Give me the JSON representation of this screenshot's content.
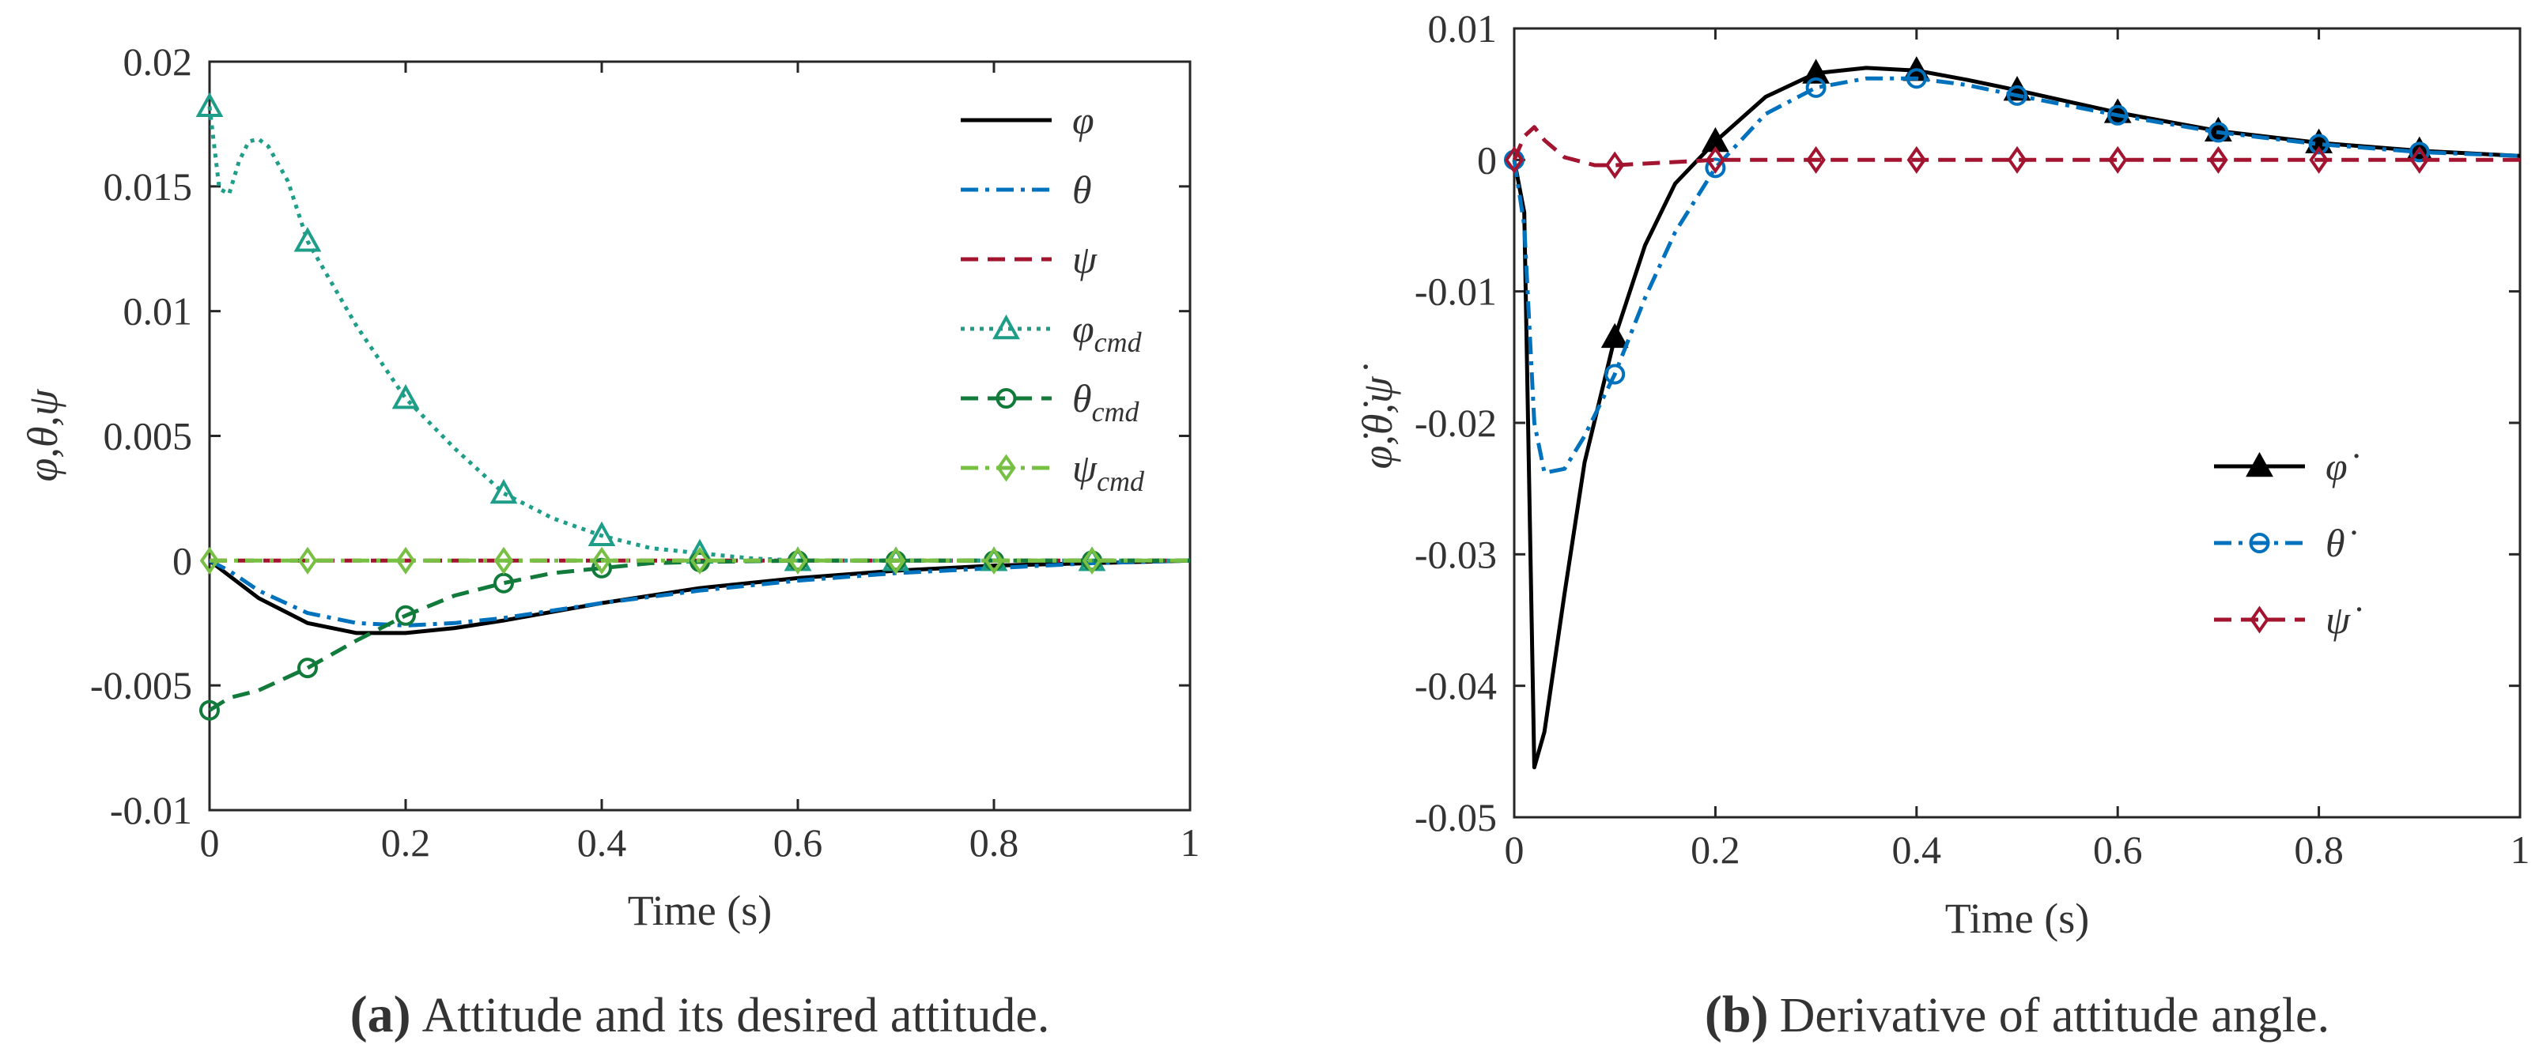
{
  "chart_data": [
    {
      "id": "a",
      "type": "line",
      "caption_letter": "(a)",
      "caption": "Attitude and its desired attitude.",
      "xlabel": "Time (s)",
      "ylabel": "φ,θ,ψ",
      "xlim": [
        0,
        1
      ],
      "ylim": [
        -0.01,
        0.02
      ],
      "xticks": [
        0,
        0.2,
        0.4,
        0.6,
        0.8,
        1
      ],
      "xtick_labels": [
        "0",
        "0.2",
        "0.4",
        "0.6",
        "0.8",
        "1"
      ],
      "yticks": [
        -0.01,
        -0.005,
        0,
        0.005,
        0.01,
        0.015,
        0.02
      ],
      "ytick_labels": [
        "-0.01",
        "-0.005",
        "0",
        "0.005",
        "0.01",
        "0.015",
        "0.02"
      ],
      "grid": false,
      "legend_position": "top-right",
      "series": [
        {
          "name": "φ",
          "sub": "",
          "color": "#000000",
          "dash": "solid",
          "marker": "none",
          "x": [
            0,
            0.02,
            0.05,
            0.1,
            0.15,
            0.2,
            0.25,
            0.3,
            0.4,
            0.5,
            0.6,
            0.7,
            0.8,
            0.9,
            1.0
          ],
          "y": [
            0,
            -0.0006,
            -0.0015,
            -0.0025,
            -0.0029,
            -0.0029,
            -0.0027,
            -0.0024,
            -0.0017,
            -0.0011,
            -0.0007,
            -0.0004,
            -0.0002,
            -0.0001,
            0
          ]
        },
        {
          "name": "θ",
          "sub": "",
          "color": "#0072BD",
          "dash": "dashdot",
          "marker": "none",
          "x": [
            0,
            0.02,
            0.05,
            0.1,
            0.15,
            0.2,
            0.25,
            0.3,
            0.4,
            0.5,
            0.6,
            0.7,
            0.8,
            0.9,
            1.0
          ],
          "y": [
            0,
            -0.0004,
            -0.0012,
            -0.0021,
            -0.0025,
            -0.0026,
            -0.0025,
            -0.0023,
            -0.0017,
            -0.0012,
            -0.0008,
            -0.0005,
            -0.0003,
            -0.0001,
            0
          ]
        },
        {
          "name": "ψ",
          "sub": "",
          "color": "#A2142F",
          "dash": "dashed",
          "marker": "none",
          "x": [
            0,
            0.2,
            0.4,
            0.6,
            0.8,
            1.0
          ],
          "y": [
            0,
            0,
            0,
            0,
            0,
            0
          ]
        },
        {
          "name": "φ",
          "sub": "cmd",
          "color": "#1E9E88",
          "dash": "dotted",
          "marker": "triangle",
          "x": [
            0,
            0.01,
            0.02,
            0.03,
            0.04,
            0.05,
            0.06,
            0.08,
            0.1,
            0.15,
            0.2,
            0.25,
            0.3,
            0.35,
            0.4,
            0.45,
            0.5,
            0.55,
            0.6,
            0.7,
            0.8,
            0.9,
            1.0
          ],
          "y": [
            0.0182,
            0.0149,
            0.0147,
            0.016,
            0.0168,
            0.0169,
            0.0166,
            0.0152,
            0.0128,
            0.0094,
            0.0065,
            0.0045,
            0.0027,
            0.0017,
            0.001,
            0.0005,
            0.0003,
            0.0001,
            0,
            0,
            0,
            0,
            0
          ],
          "marker_x": [
            0,
            0.1,
            0.2,
            0.3,
            0.4,
            0.5,
            0.6,
            0.7,
            0.8,
            0.9
          ],
          "marker_y": [
            0.0182,
            0.0128,
            0.0065,
            0.0027,
            0.001,
            0.0003,
            0,
            0,
            0,
            0
          ]
        },
        {
          "name": "θ",
          "sub": "cmd",
          "color": "#127A3A",
          "dash": "dashed",
          "marker": "circle",
          "x": [
            0,
            0.02,
            0.05,
            0.1,
            0.15,
            0.2,
            0.25,
            0.3,
            0.35,
            0.4,
            0.45,
            0.5,
            0.6,
            0.7,
            0.8,
            0.9,
            1.0
          ],
          "y": [
            -0.006,
            -0.0055,
            -0.0052,
            -0.0043,
            -0.0032,
            -0.0022,
            -0.0014,
            -0.0009,
            -0.0005,
            -0.0003,
            -0.0001,
            -5e-05,
            0,
            0,
            0,
            0,
            0
          ],
          "marker_x": [
            0,
            0.1,
            0.2,
            0.3,
            0.4,
            0.5,
            0.6,
            0.7,
            0.8,
            0.9
          ],
          "marker_y": [
            -0.006,
            -0.0043,
            -0.0022,
            -0.0009,
            -0.0003,
            -5e-05,
            0,
            0,
            0,
            0
          ]
        },
        {
          "name": "ψ",
          "sub": "cmd",
          "color": "#77C043",
          "dash": "dashdot",
          "marker": "diamond",
          "x": [
            0,
            0.2,
            0.4,
            0.6,
            0.8,
            1.0
          ],
          "y": [
            0,
            0,
            0,
            0,
            0,
            0
          ],
          "marker_x": [
            0,
            0.1,
            0.2,
            0.3,
            0.4,
            0.5,
            0.6,
            0.7,
            0.8,
            0.9
          ],
          "marker_y": [
            0,
            0,
            0,
            0,
            0,
            0,
            0,
            0,
            0,
            0
          ]
        }
      ]
    },
    {
      "id": "b",
      "type": "line",
      "caption_letter": "(b)",
      "caption": "Derivative of attitude angle.",
      "xlabel": "Time (s)",
      "ylabel": "φ̇,θ̇,ψ̇",
      "xlim": [
        0,
        1
      ],
      "ylim": [
        -0.05,
        0.01
      ],
      "xticks": [
        0,
        0.2,
        0.4,
        0.6,
        0.8,
        1
      ],
      "xtick_labels": [
        "0",
        "0.2",
        "0.4",
        "0.6",
        "0.8",
        "1"
      ],
      "yticks": [
        -0.05,
        -0.04,
        -0.03,
        -0.02,
        -0.01,
        0,
        0.01
      ],
      "ytick_labels": [
        "-0.05",
        "-0.04",
        "-0.03",
        "-0.02",
        "-0.01",
        "0",
        "0.01"
      ],
      "grid": false,
      "legend_position": "right",
      "series": [
        {
          "name": "φ̇",
          "sub": "",
          "color": "#000000",
          "dash": "solid",
          "marker": "triangle",
          "x": [
            0,
            0.01,
            0.02,
            0.03,
            0.05,
            0.07,
            0.1,
            0.13,
            0.16,
            0.2,
            0.25,
            0.3,
            0.35,
            0.4,
            0.45,
            0.5,
            0.6,
            0.7,
            0.8,
            0.9,
            1.0
          ],
          "y": [
            0,
            -0.004,
            -0.0462,
            -0.0435,
            -0.033,
            -0.023,
            -0.0135,
            -0.0065,
            -0.0018,
            0.0014,
            0.0048,
            0.0066,
            0.007,
            0.0068,
            0.0061,
            0.0053,
            0.0036,
            0.0022,
            0.0013,
            0.0007,
            0.0003
          ],
          "marker_x": [
            0.1,
            0.2,
            0.3,
            0.4,
            0.5,
            0.6,
            0.7,
            0.8,
            0.9
          ],
          "marker_y": [
            -0.0135,
            0.0014,
            0.0066,
            0.0068,
            0.0053,
            0.0036,
            0.0022,
            0.0013,
            0.0007
          ]
        },
        {
          "name": "θ̇",
          "sub": "",
          "color": "#0072BD",
          "dash": "dashdot",
          "marker": "circle",
          "x": [
            0,
            0.01,
            0.02,
            0.03,
            0.05,
            0.07,
            0.1,
            0.13,
            0.16,
            0.2,
            0.25,
            0.3,
            0.35,
            0.4,
            0.45,
            0.5,
            0.6,
            0.7,
            0.8,
            0.9,
            1.0
          ],
          "y": [
            0,
            -0.005,
            -0.02,
            -0.0238,
            -0.0235,
            -0.021,
            -0.0163,
            -0.0105,
            -0.0055,
            -0.0006,
            0.0035,
            0.0055,
            0.0062,
            0.0062,
            0.0057,
            0.0049,
            0.0034,
            0.0021,
            0.0012,
            0.0006,
            0.0003
          ],
          "marker_x": [
            0,
            0.1,
            0.2,
            0.3,
            0.4,
            0.5,
            0.6,
            0.7,
            0.8,
            0.9
          ],
          "marker_y": [
            0,
            -0.0163,
            -0.0006,
            0.0055,
            0.0062,
            0.0049,
            0.0034,
            0.0021,
            0.0012,
            0.0006
          ]
        },
        {
          "name": "ψ̇",
          "sub": "",
          "color": "#A2142F",
          "dash": "dashed",
          "marker": "diamond",
          "x": [
            0,
            0.01,
            0.02,
            0.03,
            0.05,
            0.08,
            0.1,
            0.15,
            0.2,
            0.3,
            0.4,
            0.5,
            0.6,
            0.7,
            0.8,
            0.9,
            1.0
          ],
          "y": [
            0,
            0.0018,
            0.0025,
            0.0015,
            0.0002,
            -0.0004,
            -0.0004,
            -0.0002,
            0,
            0,
            0,
            0,
            0,
            0,
            0,
            0,
            0
          ],
          "marker_x": [
            0,
            0.1,
            0.2,
            0.3,
            0.4,
            0.5,
            0.6,
            0.7,
            0.8,
            0.9
          ],
          "marker_y": [
            0,
            -0.0004,
            0,
            0,
            0,
            0,
            0,
            0,
            0,
            0
          ]
        }
      ]
    }
  ]
}
